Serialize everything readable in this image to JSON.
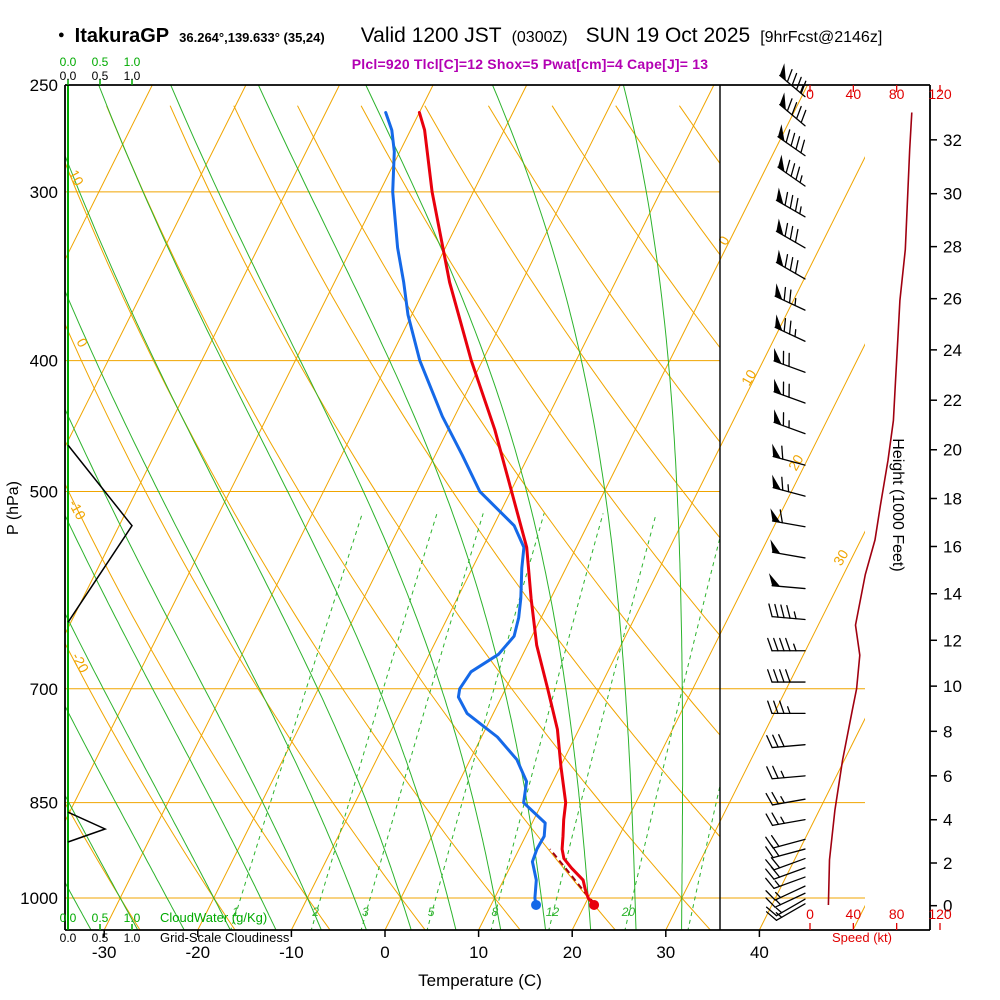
{
  "header": {
    "bullet": "●",
    "station": "ItakuraGP",
    "coords": "36.264°,139.633° (35,24)",
    "valid_main": "Valid 1200 JST",
    "valid_z": "(0300Z)",
    "valid_date": "SUN 19 Oct 2025",
    "forecast_tag": "[9hrFcst@2146z]",
    "params": "Plcl=920 Tlcl[C]=12 Shox=5 Pwat[cm]=4 Cape[J]= 13"
  },
  "axes": {
    "pressure_label": "P (hPa)",
    "pressure_ticks": [
      250,
      300,
      400,
      500,
      700,
      850,
      1000
    ],
    "temp_label": "Temperature (C)",
    "temp_ticks": [
      -30,
      -20,
      -10,
      0,
      10,
      20,
      30,
      40
    ],
    "height_label": "Height (1000 Feet)",
    "height_ticks": [
      0,
      2,
      4,
      6,
      8,
      10,
      12,
      14,
      16,
      18,
      20,
      22,
      24,
      26,
      28,
      30,
      32
    ],
    "speed_label": "Speed (kt)",
    "speed_ticks": [
      0,
      40,
      80,
      120
    ],
    "cloud_scale_ticks": [
      "0.0",
      "0.5",
      "1.0"
    ],
    "cloudwater_label": "CloudWater (g/Kg)",
    "cloudiness_label": "Grid-Scale Cloudiness"
  },
  "chart_data": {
    "type": "skewt",
    "colors": {
      "orange": "#f0a500",
      "green": "#2db32d",
      "green_axis": "#00aa00",
      "temp_red": "#e8000d",
      "dew_blue": "#1569e8",
      "maroon": "#a00010",
      "magenta": "#b300b3",
      "black": "#000000"
    },
    "isotherm_range": [
      -80,
      40
    ],
    "isotherm_step": 10,
    "isotherm_margin_labels": [
      [
        0,
        728,
        243
      ],
      [
        10,
        753,
        380
      ],
      [
        20,
        800,
        465
      ],
      [
        30,
        845,
        560
      ]
    ],
    "dry_adiabat_range": [
      -40,
      120
    ],
    "dry_adiabat_step": 10,
    "dry_adiabat_edge_labels": [
      [
        10,
        72,
        180
      ],
      [
        0,
        78,
        345
      ],
      [
        -10,
        73,
        512
      ],
      [
        -20,
        76,
        665
      ]
    ],
    "moist_adiabat_values": [
      -40,
      -35,
      -30,
      -25,
      -20,
      -15,
      -10,
      -5,
      0,
      5,
      10,
      15,
      20,
      25,
      30,
      35
    ],
    "mixing_ratio_values": [
      1,
      2,
      3,
      5,
      8,
      12,
      20,
      30
    ],
    "mixing_ratio_labeled": [
      1,
      2,
      3,
      5,
      8,
      12,
      20
    ],
    "pressure_gridlines_short": [
      300,
      400,
      500
    ],
    "pressure_gridlines_long": [
      700,
      850,
      1000
    ],
    "temperature_profile": [
      [
        1012,
        21.0
      ],
      [
        1000,
        20.0
      ],
      [
        985,
        19.2
      ],
      [
        970,
        18.5
      ],
      [
        950,
        16.6
      ],
      [
        935,
        15.3
      ],
      [
        920,
        14.6
      ],
      [
        900,
        14.0
      ],
      [
        875,
        13.2
      ],
      [
        850,
        12.5
      ],
      [
        800,
        10.1
      ],
      [
        750,
        7.7
      ],
      [
        700,
        4.5
      ],
      [
        650,
        1.0
      ],
      [
        600,
        -2.1
      ],
      [
        550,
        -5.3
      ],
      [
        500,
        -9.9
      ],
      [
        450,
        -15.0
      ],
      [
        400,
        -21.2
      ],
      [
        350,
        -27.7
      ],
      [
        300,
        -34.4
      ],
      [
        270,
        -38.5
      ],
      [
        262,
        -40.0
      ]
    ],
    "dewpoint_profile": [
      [
        1012,
        14.8
      ],
      [
        1000,
        14.3
      ],
      [
        970,
        13.5
      ],
      [
        940,
        12.1
      ],
      [
        920,
        11.9
      ],
      [
        900,
        12.0
      ],
      [
        880,
        11.4
      ],
      [
        850,
        8.0
      ],
      [
        820,
        7.2
      ],
      [
        790,
        5.0
      ],
      [
        760,
        1.7
      ],
      [
        730,
        -2.8
      ],
      [
        710,
        -4.6
      ],
      [
        700,
        -4.9
      ],
      [
        680,
        -4.6
      ],
      [
        660,
        -2.6
      ],
      [
        640,
        -1.9
      ],
      [
        620,
        -2.4
      ],
      [
        600,
        -3.2
      ],
      [
        570,
        -4.7
      ],
      [
        550,
        -5.6
      ],
      [
        530,
        -7.8
      ],
      [
        500,
        -13.3
      ],
      [
        470,
        -17.1
      ],
      [
        440,
        -21.3
      ],
      [
        400,
        -26.7
      ],
      [
        370,
        -30.4
      ],
      [
        350,
        -32.6
      ],
      [
        330,
        -35.1
      ],
      [
        300,
        -38.6
      ],
      [
        280,
        -40.6
      ],
      [
        270,
        -42.0
      ],
      [
        262,
        -43.6
      ]
    ],
    "parcel_path": [
      [
        1010,
        21.0
      ],
      [
        990,
        19.3
      ],
      [
        960,
        16.8
      ],
      [
        920,
        13.3
      ]
    ],
    "cloudiness_bulges": [
      [
        [
          462,
          0
        ],
        [
          530,
          1.0
        ],
        [
          625,
          0
        ]
      ],
      [
        [
          864,
          0
        ],
        [
          889,
          0.58
        ],
        [
          909,
          0
        ]
      ]
    ],
    "wind_barbs": [
      [
        255,
        310,
        95
      ],
      [
        268,
        310,
        90
      ],
      [
        282,
        305,
        90
      ],
      [
        297,
        305,
        85
      ],
      [
        313,
        300,
        85
      ],
      [
        330,
        300,
        80
      ],
      [
        348,
        300,
        80
      ],
      [
        367,
        295,
        75
      ],
      [
        387,
        295,
        75
      ],
      [
        408,
        290,
        70
      ],
      [
        430,
        290,
        70
      ],
      [
        453,
        290,
        65
      ],
      [
        478,
        285,
        60
      ],
      [
        504,
        285,
        65
      ],
      [
        531,
        280,
        60
      ],
      [
        560,
        280,
        50
      ],
      [
        590,
        275,
        50
      ],
      [
        622,
        275,
        45
      ],
      [
        656,
        270,
        45
      ],
      [
        692,
        270,
        40
      ],
      [
        730,
        270,
        35
      ],
      [
        770,
        265,
        30
      ],
      [
        812,
        265,
        25
      ],
      [
        845,
        260,
        25
      ],
      [
        875,
        260,
        25
      ],
      [
        905,
        255,
        20
      ],
      [
        920,
        255,
        20
      ],
      [
        935,
        250,
        20
      ],
      [
        950,
        250,
        20
      ],
      [
        965,
        250,
        15
      ],
      [
        980,
        245,
        15
      ],
      [
        992,
        245,
        15
      ],
      [
        1002,
        240,
        15
      ],
      [
        1010,
        240,
        15
      ]
    ],
    "speed_profile": [
      [
        1012,
        17
      ],
      [
        937,
        18
      ],
      [
        861,
        23
      ],
      [
        791,
        30
      ],
      [
        726,
        39
      ],
      [
        700,
        43
      ],
      [
        661,
        46
      ],
      [
        628,
        42
      ],
      [
        576,
        51
      ],
      [
        543,
        60
      ],
      [
        512,
        65
      ],
      [
        474,
        72
      ],
      [
        443,
        77
      ],
      [
        413,
        79
      ],
      [
        386,
        81
      ],
      [
        361,
        83
      ],
      [
        331,
        88
      ],
      [
        304,
        90
      ],
      [
        279,
        92
      ],
      [
        262,
        94
      ]
    ]
  }
}
